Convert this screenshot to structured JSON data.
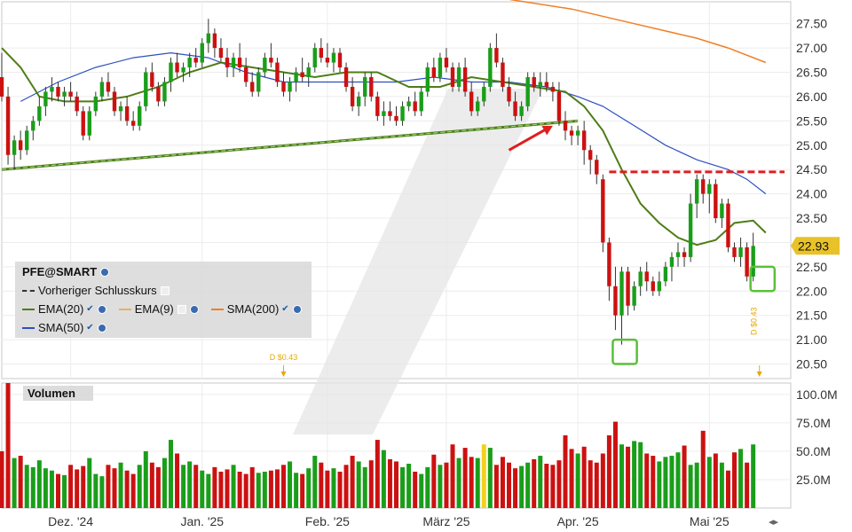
{
  "chart_data": {
    "type": "candlestick",
    "symbol": "PFE@SMART",
    "price_axis": {
      "ticks": [
        20.5,
        21.0,
        21.5,
        22.0,
        22.5,
        23.0,
        23.5,
        24.0,
        24.5,
        25.0,
        25.5,
        26.0,
        26.5,
        27.0,
        27.5
      ],
      "tick_labels": [
        "20.50",
        "21.00",
        "21.50",
        "22.00",
        "22.50",
        "23.00",
        "23.50",
        "24.00",
        "24.50",
        "25.00",
        "25.50",
        "26.00",
        "26.50",
        "27.00",
        "27.50"
      ],
      "range": [
        20.2,
        27.95
      ],
      "last_price": "22.93",
      "last_price_color": "#e8c228"
    },
    "volume_axis": {
      "ticks": [
        25,
        50,
        75,
        100
      ],
      "tick_labels": [
        "25.0M",
        "50.0M",
        "75.0M",
        "100.0M"
      ],
      "range": [
        0,
        110
      ],
      "title": "Volumen"
    },
    "x_labels": [
      {
        "label": "Dez. '24",
        "index": 10
      },
      {
        "label": "Jan. '25",
        "index": 31
      },
      {
        "label": "Feb. '25",
        "index": 51
      },
      {
        "label": "März '25",
        "index": 70
      },
      {
        "label": "Apr. '25",
        "index": 91
      },
      {
        "label": "Mai '25",
        "index": 112
      }
    ],
    "candles_start_index": -1,
    "candles": [
      [
        26.4,
        26.9,
        25.9,
        26.0
      ],
      [
        26.0,
        26.2,
        24.6,
        24.8
      ],
      [
        24.8,
        25.2,
        24.5,
        25.1
      ],
      [
        25.1,
        25.3,
        24.7,
        24.9
      ],
      [
        24.9,
        25.4,
        24.8,
        25.3
      ],
      [
        25.3,
        25.6,
        25.1,
        25.5
      ],
      [
        25.5,
        26.0,
        25.4,
        25.8
      ],
      [
        25.8,
        26.2,
        25.6,
        26.1
      ],
      [
        26.1,
        26.4,
        25.9,
        26.2
      ],
      [
        26.2,
        26.3,
        25.9,
        26.0
      ],
      [
        26.0,
        26.2,
        25.8,
        26.1
      ],
      [
        26.1,
        26.3,
        25.9,
        26.0
      ],
      [
        26.0,
        26.1,
        25.6,
        25.7
      ],
      [
        25.7,
        25.8,
        25.1,
        25.2
      ],
      [
        25.2,
        25.8,
        25.1,
        25.7
      ],
      [
        25.7,
        26.1,
        25.6,
        26.0
      ],
      [
        26.0,
        26.4,
        25.9,
        26.3
      ],
      [
        26.3,
        26.5,
        26.0,
        26.1
      ],
      [
        26.1,
        26.2,
        25.6,
        25.7
      ],
      [
        25.7,
        25.9,
        25.5,
        25.8
      ],
      [
        25.8,
        26.0,
        25.4,
        25.5
      ],
      [
        25.5,
        25.7,
        25.3,
        25.4
      ],
      [
        25.4,
        25.9,
        25.3,
        25.8
      ],
      [
        25.8,
        26.6,
        25.7,
        26.5
      ],
      [
        26.5,
        26.7,
        26.1,
        26.2
      ],
      [
        26.2,
        26.3,
        25.8,
        25.9
      ],
      [
        25.9,
        26.4,
        25.8,
        26.3
      ],
      [
        26.3,
        26.8,
        26.1,
        26.7
      ],
      [
        26.7,
        26.9,
        26.4,
        26.5
      ],
      [
        26.5,
        26.7,
        26.3,
        26.6
      ],
      [
        26.6,
        26.9,
        26.4,
        26.8
      ],
      [
        26.8,
        27.0,
        26.6,
        26.7
      ],
      [
        26.7,
        27.2,
        26.6,
        27.1
      ],
      [
        27.1,
        27.6,
        26.9,
        27.3
      ],
      [
        27.3,
        27.4,
        26.8,
        27.0
      ],
      [
        27.0,
        27.2,
        26.7,
        26.8
      ],
      [
        26.8,
        27.0,
        26.4,
        26.6
      ],
      [
        26.6,
        26.9,
        26.4,
        26.8
      ],
      [
        26.8,
        27.1,
        26.5,
        26.6
      ],
      [
        26.6,
        26.8,
        26.2,
        26.3
      ],
      [
        26.3,
        26.5,
        26.0,
        26.1
      ],
      [
        26.1,
        26.6,
        26.0,
        26.5
      ],
      [
        26.5,
        26.9,
        26.4,
        26.8
      ],
      [
        26.8,
        27.1,
        26.6,
        26.7
      ],
      [
        26.7,
        26.8,
        26.2,
        26.3
      ],
      [
        26.3,
        26.5,
        26.0,
        26.1
      ],
      [
        26.1,
        26.4,
        25.9,
        26.3
      ],
      [
        26.3,
        26.6,
        26.1,
        26.5
      ],
      [
        26.5,
        26.8,
        26.3,
        26.4
      ],
      [
        26.4,
        26.7,
        26.2,
        26.6
      ],
      [
        26.6,
        27.1,
        26.5,
        27.0
      ],
      [
        27.0,
        27.2,
        26.7,
        26.8
      ],
      [
        26.8,
        27.1,
        26.6,
        26.7
      ],
      [
        26.7,
        27.0,
        26.5,
        26.9
      ],
      [
        26.9,
        27.0,
        26.5,
        26.6
      ],
      [
        26.6,
        26.7,
        26.1,
        26.2
      ],
      [
        26.2,
        26.4,
        25.7,
        25.8
      ],
      [
        25.8,
        26.1,
        25.6,
        26.0
      ],
      [
        26.0,
        26.5,
        25.8,
        26.4
      ],
      [
        26.4,
        26.5,
        25.9,
        26.0
      ],
      [
        26.0,
        26.1,
        25.5,
        25.6
      ],
      [
        25.6,
        25.9,
        25.4,
        25.7
      ],
      [
        25.7,
        25.9,
        25.5,
        25.6
      ],
      [
        25.6,
        25.8,
        25.4,
        25.5
      ],
      [
        25.5,
        25.9,
        25.4,
        25.8
      ],
      [
        25.8,
        26.0,
        25.7,
        25.9
      ],
      [
        25.9,
        26.1,
        25.6,
        25.7
      ],
      [
        25.7,
        26.2,
        25.6,
        26.1
      ],
      [
        26.1,
        26.7,
        26.0,
        26.6
      ],
      [
        26.6,
        26.8,
        26.3,
        26.4
      ],
      [
        26.4,
        26.9,
        26.3,
        26.8
      ],
      [
        26.8,
        27.0,
        26.5,
        26.6
      ],
      [
        26.6,
        26.7,
        26.1,
        26.2
      ],
      [
        26.2,
        26.7,
        26.1,
        26.6
      ],
      [
        26.6,
        26.8,
        26.0,
        26.1
      ],
      [
        26.1,
        26.3,
        25.6,
        25.7
      ],
      [
        25.7,
        26.0,
        25.6,
        25.9
      ],
      [
        25.9,
        26.3,
        25.8,
        26.2
      ],
      [
        26.2,
        27.1,
        26.1,
        27.0
      ],
      [
        27.0,
        27.3,
        26.6,
        26.7
      ],
      [
        26.7,
        26.8,
        26.1,
        26.2
      ],
      [
        26.2,
        26.4,
        25.8,
        25.9
      ],
      [
        25.9,
        26.1,
        25.5,
        25.6
      ],
      [
        25.6,
        25.9,
        25.5,
        25.8
      ],
      [
        25.8,
        26.5,
        25.7,
        26.4
      ],
      [
        26.4,
        26.5,
        26.1,
        26.2
      ],
      [
        26.2,
        26.5,
        26.0,
        26.3
      ],
      [
        26.3,
        26.5,
        26.1,
        26.2
      ],
      [
        26.2,
        26.3,
        25.9,
        26.1
      ],
      [
        26.1,
        26.3,
        25.4,
        25.5
      ],
      [
        25.5,
        25.7,
        25.1,
        25.3
      ],
      [
        25.3,
        25.4,
        25.0,
        25.2
      ],
      [
        25.2,
        25.4,
        25.0,
        25.3
      ],
      [
        25.3,
        25.5,
        24.6,
        24.9
      ],
      [
        24.9,
        25.0,
        24.4,
        24.7
      ],
      [
        24.7,
        24.8,
        24.2,
        24.4
      ],
      [
        24.3,
        24.4,
        22.8,
        23.0
      ],
      [
        23.0,
        23.1,
        21.8,
        22.1
      ],
      [
        22.1,
        22.5,
        21.2,
        21.5
      ],
      [
        21.5,
        22.5,
        20.9,
        22.4
      ],
      [
        22.4,
        22.5,
        21.5,
        21.7
      ],
      [
        21.7,
        22.2,
        21.6,
        22.1
      ],
      [
        22.1,
        22.5,
        21.9,
        22.4
      ],
      [
        22.4,
        22.6,
        22.0,
        22.2
      ],
      [
        22.2,
        22.3,
        21.9,
        22.0
      ],
      [
        22.0,
        22.4,
        21.9,
        22.2
      ],
      [
        22.2,
        22.6,
        22.1,
        22.5
      ],
      [
        22.5,
        22.8,
        22.2,
        22.7
      ],
      [
        22.7,
        23.0,
        22.5,
        22.8
      ],
      [
        22.8,
        22.9,
        22.5,
        22.7
      ],
      [
        22.7,
        24.0,
        22.6,
        23.8
      ],
      [
        23.8,
        24.4,
        23.5,
        24.3
      ],
      [
        24.3,
        24.4,
        23.8,
        24.0
      ],
      [
        24.0,
        24.3,
        23.6,
        24.2
      ],
      [
        24.2,
        24.3,
        23.4,
        23.5
      ],
      [
        23.5,
        23.9,
        23.3,
        23.8
      ],
      [
        23.8,
        23.9,
        22.8,
        22.9
      ],
      [
        22.9,
        23.0,
        22.6,
        22.7
      ],
      [
        22.7,
        23.1,
        22.5,
        22.9
      ],
      [
        22.9,
        23.0,
        22.2,
        22.3
      ],
      [
        22.3,
        23.2,
        22.2,
        22.93
      ]
    ],
    "volumes": [
      50,
      110,
      44,
      46,
      38,
      36,
      42,
      35,
      33,
      30,
      29,
      38,
      34,
      37,
      44,
      30,
      28,
      38,
      35,
      40,
      33,
      30,
      38,
      50,
      40,
      36,
      44,
      60,
      48,
      38,
      41,
      38,
      33,
      30,
      36,
      32,
      34,
      38,
      32,
      30,
      36,
      31,
      32,
      33,
      34,
      38,
      41,
      31,
      30,
      35,
      46,
      40,
      33,
      35,
      32,
      38,
      46,
      41,
      36,
      42,
      60,
      51,
      43,
      41,
      36,
      39,
      32,
      30,
      36,
      47,
      38,
      40,
      56,
      44,
      53,
      45,
      44,
      56,
      53,
      38,
      45,
      40,
      35,
      37,
      40,
      43,
      46,
      39,
      38,
      42,
      64,
      52,
      48,
      54,
      42,
      40,
      48,
      64,
      76,
      56,
      54,
      59,
      58,
      48,
      46,
      41,
      45,
      46,
      49,
      55,
      38,
      40,
      68,
      45,
      48,
      40,
      33,
      49,
      52,
      40,
      56
    ],
    "ema20": [
      [
        -1,
        27.0
      ],
      [
        2,
        26.6
      ],
      [
        5,
        26.0
      ],
      [
        9,
        25.9
      ],
      [
        14,
        25.9
      ],
      [
        19,
        26.0
      ],
      [
        24,
        26.2
      ],
      [
        29,
        26.5
      ],
      [
        34,
        26.7
      ],
      [
        39,
        26.6
      ],
      [
        44,
        26.5
      ],
      [
        49,
        26.4
      ],
      [
        54,
        26.5
      ],
      [
        59,
        26.5
      ],
      [
        64,
        26.2
      ],
      [
        69,
        26.2
      ],
      [
        74,
        26.4
      ],
      [
        79,
        26.3
      ],
      [
        84,
        26.2
      ],
      [
        89,
        26.1
      ],
      [
        92,
        25.8
      ],
      [
        95,
        25.3
      ],
      [
        98,
        24.5
      ],
      [
        101,
        23.8
      ],
      [
        104,
        23.4
      ],
      [
        107,
        23.1
      ],
      [
        110,
        22.95
      ],
      [
        113,
        23.05
      ],
      [
        116,
        23.4
      ],
      [
        119,
        23.45
      ],
      [
        121,
        23.2
      ]
    ],
    "sma50": [
      [
        2,
        25.9
      ],
      [
        8,
        26.3
      ],
      [
        14,
        26.6
      ],
      [
        20,
        26.8
      ],
      [
        26,
        26.9
      ],
      [
        32,
        26.8
      ],
      [
        38,
        26.5
      ],
      [
        44,
        26.3
      ],
      [
        50,
        26.3
      ],
      [
        56,
        26.3
      ],
      [
        62,
        26.3
      ],
      [
        68,
        26.4
      ],
      [
        74,
        26.3
      ],
      [
        80,
        26.3
      ],
      [
        86,
        26.2
      ],
      [
        91,
        26.0
      ],
      [
        95,
        25.8
      ],
      [
        100,
        25.4
      ],
      [
        105,
        25.0
      ],
      [
        110,
        24.7
      ],
      [
        115,
        24.5
      ],
      [
        118,
        24.3
      ],
      [
        121,
        24.0
      ]
    ],
    "sma200": [
      [
        5,
        28.9
      ],
      [
        20,
        28.6
      ],
      [
        40,
        28.3
      ],
      [
        55,
        28.2
      ],
      [
        70,
        28.1
      ],
      [
        80,
        28.0
      ],
      [
        90,
        27.8
      ],
      [
        100,
        27.5
      ],
      [
        110,
        27.2
      ],
      [
        115,
        27.0
      ],
      [
        121,
        26.7
      ]
    ],
    "trendline": [
      [
        -1,
        24.5
      ],
      [
        91,
        25.5
      ]
    ],
    "resistance": [
      [
        96,
        24.45
      ],
      [
        124,
        24.45
      ]
    ],
    "arrow": {
      "from": [
        80,
        24.9
      ],
      "to": [
        87,
        25.4
      ]
    },
    "highlights": [
      {
        "from": 97,
        "to": 100,
        "low": 20.5,
        "high": 21.0
      },
      {
        "from": 119,
        "to": 122,
        "low": 22.0,
        "high": 22.5
      }
    ],
    "dividends": [
      {
        "index": 44,
        "label": "D $0.43"
      },
      {
        "index": 120,
        "label": "D $0.43"
      }
    ],
    "highlighted_volume_index": 76,
    "colors": {
      "up": "#1a9e1a",
      "down": "#cc1111",
      "ema20": "#4e7d17",
      "sma50": "#2d4fbf",
      "sma200": "#f07f26",
      "trendline": "#4e7d17",
      "resistance": "#e01e1e",
      "dividend": "#e8a800",
      "highlight_box": "#5bbf3a",
      "highlighted_volume": "#f3d21b"
    }
  },
  "legend": {
    "symbol": "PFE@SMART",
    "prev_close": "Vorheriger Schlusskurs",
    "ema20": "EMA(20)",
    "ema9": "EMA(9)",
    "sma200": "SMA(200)",
    "sma50": "SMA(50)"
  }
}
